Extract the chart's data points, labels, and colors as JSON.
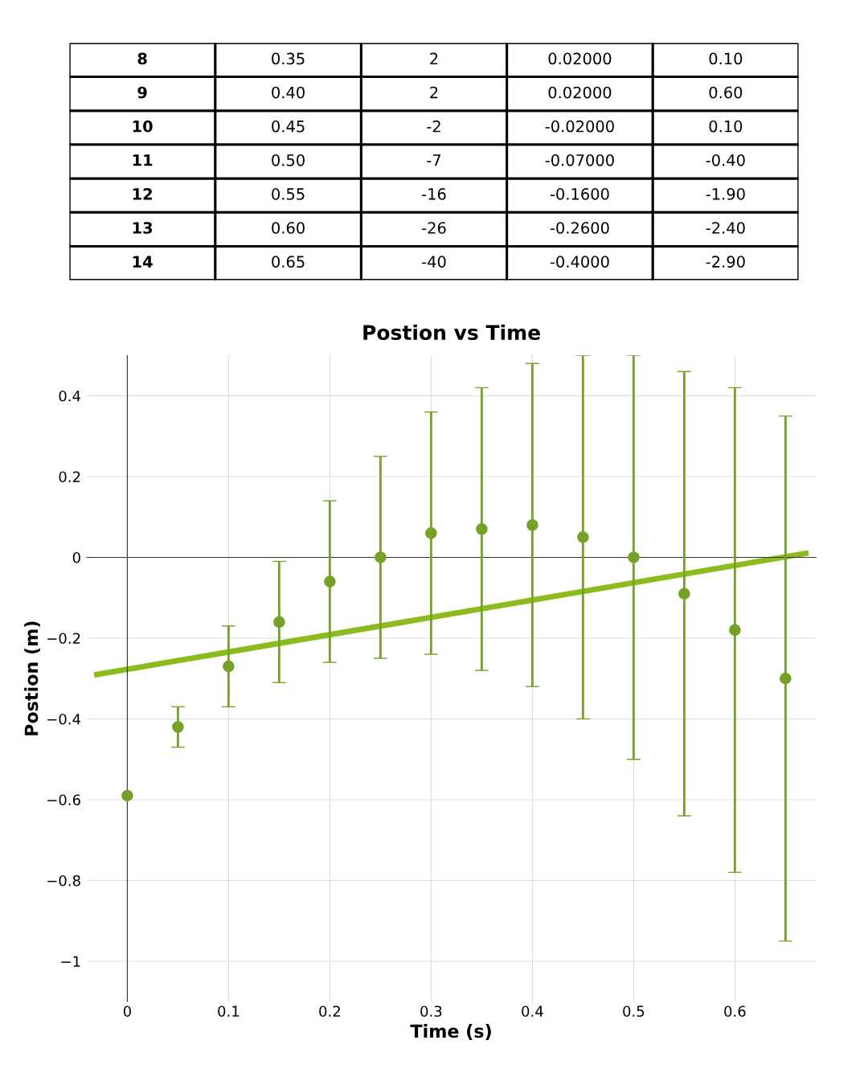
{
  "chart_data": {
    "type": "scatter",
    "title": "Postion vs Time",
    "xlabel": "Time (s)",
    "ylabel": "Postion (m)",
    "x": [
      0,
      0.05,
      0.1,
      0.15,
      0.2,
      0.25,
      0.3,
      0.35,
      0.4,
      0.45,
      0.5,
      0.55,
      0.6,
      0.65
    ],
    "series": [
      {
        "color": "#76a128",
        "marker": "circle",
        "values": [
          -0.59,
          -0.42,
          -0.27,
          -0.16,
          -0.06,
          0.0,
          0.06,
          0.07,
          0.08,
          0.05,
          0.0,
          -0.09,
          -0.18,
          -0.3
        ],
        "errors": [
          null,
          0.05,
          0.1,
          0.15,
          0.2,
          0.25,
          0.3,
          0.35,
          0.4,
          0.45,
          0.5,
          0.55,
          0.6,
          0.65
        ]
      },
      {
        "type": "line",
        "color": "#8cbb1e",
        "marker": "none",
        "line_style": "solid",
        "x": [
          -0.03,
          0.67
        ],
        "values": [
          -0.29,
          0.01
        ]
      }
    ],
    "xlim": [
      -0.04,
      0.68
    ],
    "ylim": [
      -1.1,
      0.5
    ],
    "xticks": [
      0,
      0.1,
      0.2,
      0.3,
      0.4,
      0.5,
      0.6
    ],
    "yticks": [
      {
        "value": -1,
        "label": "−1"
      },
      {
        "value": -0.8,
        "label": "−0.8"
      },
      {
        "value": -0.6,
        "label": "−0.6"
      },
      {
        "value": -0.4,
        "label": "−0.4"
      },
      {
        "value": -0.2,
        "label": "−0.2"
      },
      0,
      0.2,
      0.4
    ],
    "grid": true,
    "legend": false,
    "annotations": [
      "8",
      "0.35",
      "2",
      "0.02000",
      "0.10",
      "9",
      "0.40",
      "2",
      "0.02000",
      "0.60",
      "10",
      "0.45",
      "-2",
      "-0.02000",
      "0.10",
      "11",
      "0.50",
      "-7",
      "-0.07000",
      "-0.40",
      "12",
      "0.55",
      "-16",
      "-0.1600",
      "-1.90",
      "13",
      "0.60",
      "-26",
      "-0.2600",
      "-2.40",
      "14",
      "0.65",
      "-40",
      "-0.4000",
      "-2.90"
    ]
  }
}
